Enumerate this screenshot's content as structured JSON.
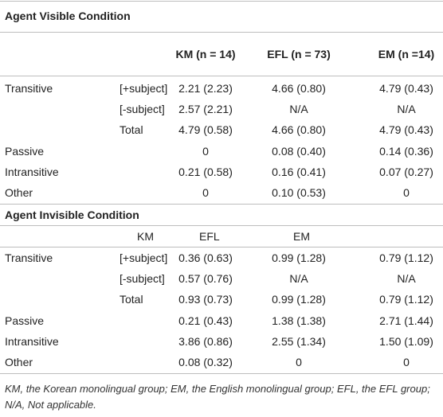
{
  "table": {
    "sections": [
      {
        "title": "Agent Visible Condition",
        "header": [
          "KM (n = 14)",
          "EFL (n = 73)",
          "EM (n =14)"
        ],
        "rows": [
          [
            "Transitive",
            "[+subject]",
            "2.21 (2.23)",
            "4.66 (0.80)",
            "4.79 (0.43)"
          ],
          [
            null,
            "[-subject]",
            "2.57 (2.21)",
            "N/A",
            "N/A"
          ],
          [
            null,
            "Total",
            "4.79 (0.58)",
            "4.66 (0.80)",
            "4.79 (0.43)"
          ],
          [
            "Passive",
            null,
            "0",
            "0.08 (0.40)",
            "0.14 (0.36)"
          ],
          [
            "Intransitive",
            null,
            "0.21 (0.58)",
            "0.16 (0.41)",
            "0.07 (0.27)"
          ],
          [
            "Other",
            null,
            "0",
            "0.10 (0.53)",
            "0"
          ]
        ]
      },
      {
        "title": "Agent Invisible Condition",
        "header": [
          "KM",
          "EFL",
          "EM"
        ],
        "rows": [
          [
            "Transitive",
            "[+subject]",
            "0.36 (0.63)",
            "0.99 (1.28)",
            "0.79 (1.12)"
          ],
          [
            null,
            "[-subject]",
            "0.57 (0.76)",
            "N/A",
            "N/A"
          ],
          [
            null,
            "Total",
            "0.93 (0.73)",
            "0.99 (1.28)",
            "0.79 (1.12)"
          ],
          [
            "Passive",
            null,
            "0.21 (0.43)",
            "1.38 (1.38)",
            "2.71 (1.44)"
          ],
          [
            "Intransitive",
            null,
            "3.86 (0.86)",
            "2.55 (1.34)",
            "1.50 (1.09)"
          ],
          [
            "Other",
            null,
            "0.08 (0.32)",
            "0",
            "0"
          ]
        ]
      }
    ],
    "footnote": "KM, the Korean monolingual group; EM, the English monolingual group; EFL, the EFL group; N/A, Not applicable."
  }
}
